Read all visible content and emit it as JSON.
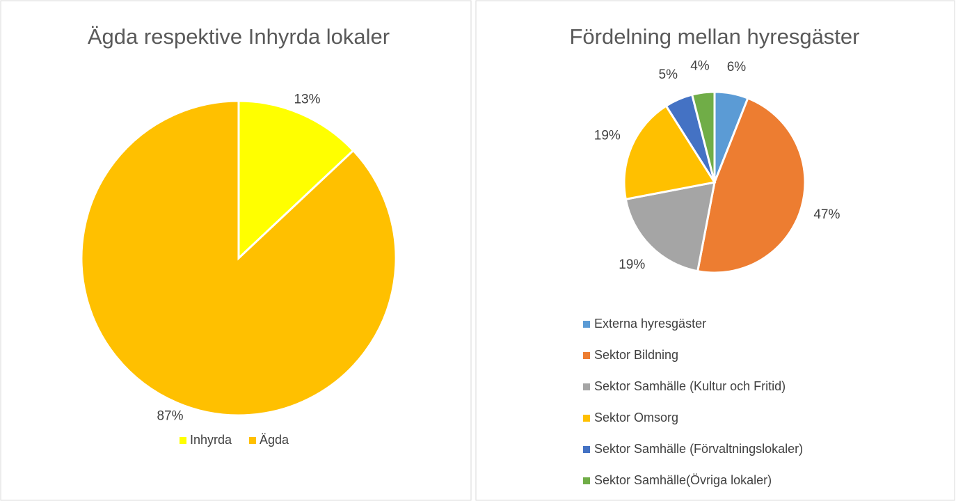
{
  "chart_data": [
    {
      "type": "pie",
      "title": "Ägda respektive Inhyrda lokaler",
      "categories": [
        "Inhyrda",
        "Ägda"
      ],
      "values": [
        13,
        87
      ],
      "value_labels": [
        "13%",
        "87%"
      ],
      "colors": [
        "#ffff00",
        "#ffc000"
      ],
      "legend": "bottom"
    },
    {
      "type": "pie",
      "title": "Fördelning mellan hyresgäster",
      "categories": [
        "Externa hyresgäster",
        "Sektor Bildning",
        "Sektor Samhälle (Kultur och Fritid)",
        "Sektor Omsorg",
        "Sektor Samhälle (Förvaltningslokaler)",
        "Sektor Samhälle(Övriga lokaler)"
      ],
      "values": [
        6,
        47,
        19,
        19,
        5,
        4
      ],
      "value_labels": [
        "6%",
        "47%",
        "19%",
        "19%",
        "5%",
        "4%"
      ],
      "colors": [
        "#5b9bd5",
        "#ed7d31",
        "#a5a5a5",
        "#ffc000",
        "#4472c4",
        "#70ad47"
      ],
      "legend": "bottom"
    }
  ]
}
